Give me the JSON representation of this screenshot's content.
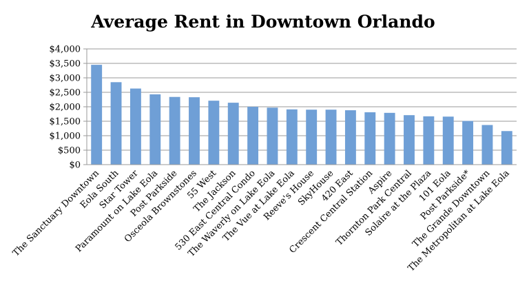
{
  "chart_data": {
    "type": "bar",
    "title": "Average Rent in Downtown Orlando",
    "xlabel": "",
    "ylabel": "",
    "ylim": [
      0,
      4000
    ],
    "y_tick_labels": [
      "$0",
      "$500",
      "$1,000",
      "$1,500",
      "$2,000",
      "$2,500",
      "$3,000",
      "$3,500",
      "$4,000"
    ],
    "grid": true,
    "bar_color": "#6f9fd6",
    "categories": [
      "The Sanctuary Downtown",
      "Eola South",
      "Star Tower",
      "Paramount on Lake Eola",
      "Post Parkside",
      "Osceola Brownstones",
      "55 West",
      "The Jackson",
      "530 East Central Condo",
      "The Waverly on Lake Eola",
      "The Vue at Lake Eola",
      "Reeve's House",
      "SkyHouse",
      "420 East",
      "Crescent Central Station",
      "Aspire",
      "Thornton Park Central",
      "Solaire at the Plaza",
      "101 Eola",
      "Post Parkside*",
      "The Grande Downtown",
      "The Metropolitan at Lake Eola"
    ],
    "values": [
      3450,
      2850,
      2630,
      2430,
      2340,
      2330,
      2210,
      2140,
      2000,
      1970,
      1910,
      1900,
      1900,
      1880,
      1810,
      1790,
      1710,
      1670,
      1660,
      1510,
      1370,
      1160
    ]
  }
}
